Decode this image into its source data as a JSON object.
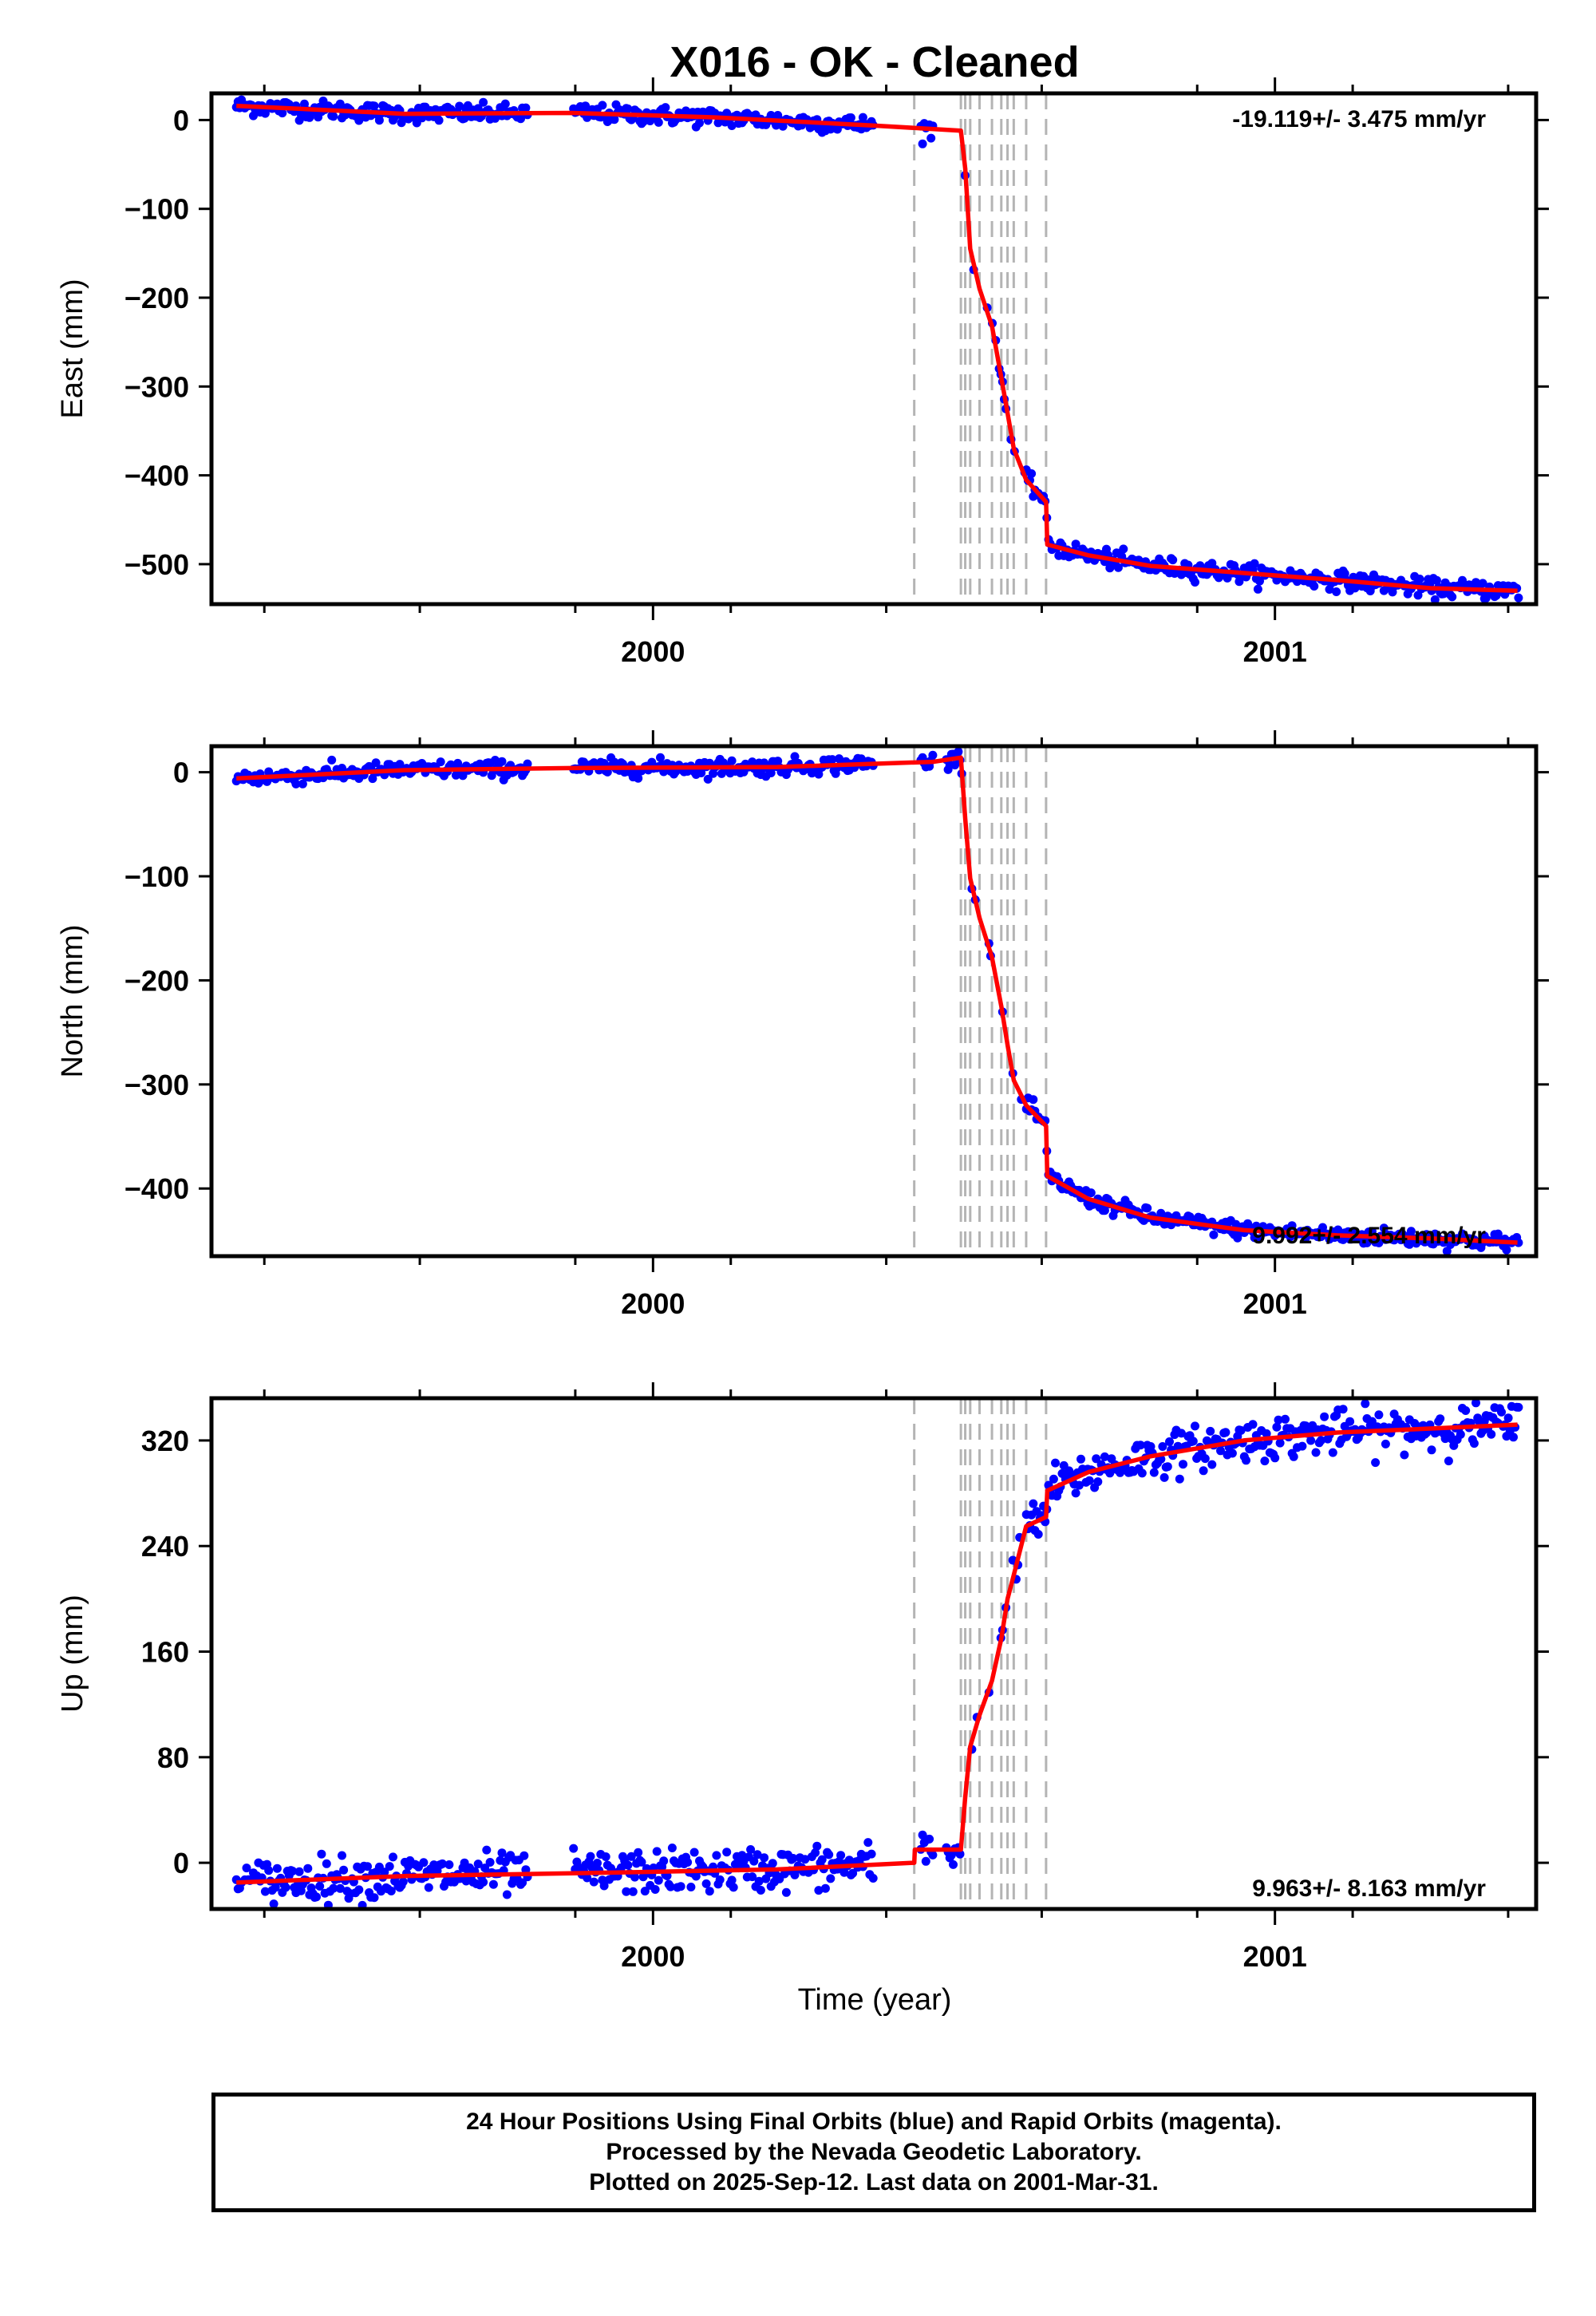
{
  "title": "X016  - OK - Cleaned",
  "xlabel": "Time (year)",
  "footer": {
    "line1": "24 Hour Positions Using Final Orbits (blue) and Rapid Orbits (magenta).",
    "line2": "Processed by the Nevada Geodetic Laboratory.",
    "line3": "Plotted on 2025-Sep-12. Last data on 2001-Mar-31."
  },
  "chart_data": {
    "type": "scatter",
    "xlim": [
      1999.29,
      2001.42
    ],
    "x_major_ticks": [
      2000,
      2001
    ],
    "x_minor_ticks": [
      1999.375,
      1999.625,
      1999.875,
      2000.125,
      2000.375,
      2000.625,
      2000.875,
      2001.125,
      2001.375
    ],
    "event_lines": [
      2000.42,
      2000.495,
      2000.502,
      2000.51,
      2000.525,
      2000.545,
      2000.56,
      2000.57,
      2000.58,
      2000.6,
      2000.632
    ],
    "colors": {
      "data": "#0000ff",
      "model": "#ff0000",
      "event": "#b4b4b4"
    },
    "panels": [
      {
        "ylabel": "East (mm)",
        "ylim": [
          -545,
          30
        ],
        "yticks": [
          0,
          -100,
          -200,
          -300,
          -400,
          -500
        ],
        "rate": "-19.119+/- 3.475 mm/yr",
        "rate_position": "top-right",
        "noise": 5,
        "model": [
          [
            1999.33,
            16
          ],
          [
            1999.6,
            7
          ],
          [
            1999.87,
            8
          ],
          [
            2000.1,
            3
          ],
          [
            2000.35,
            -6
          ],
          [
            2000.495,
            -12
          ],
          [
            2000.502,
            -55
          ],
          [
            2000.51,
            -145
          ],
          [
            2000.525,
            -190
          ],
          [
            2000.545,
            -232
          ],
          [
            2000.56,
            -290
          ],
          [
            2000.57,
            -330
          ],
          [
            2000.58,
            -370
          ],
          [
            2000.6,
            -405
          ],
          [
            2000.632,
            -430
          ],
          [
            2000.634,
            -478
          ],
          [
            2000.7,
            -490
          ],
          [
            2000.8,
            -502
          ],
          [
            2000.95,
            -510
          ],
          [
            2001.1,
            -518
          ],
          [
            2001.25,
            -527
          ],
          [
            2001.39,
            -530
          ]
        ],
        "gaps": [
          [
            1999.8,
            1999.87
          ],
          [
            2000.355,
            2000.43
          ],
          [
            2000.45,
            2000.495
          ]
        ]
      },
      {
        "ylabel": "North (mm)",
        "ylim": [
          -465,
          25
        ],
        "yticks": [
          0,
          -100,
          -200,
          -300,
          -400
        ],
        "rate": "9.992+/- 2.554 mm/yr",
        "rate_position": "bottom-right",
        "noise": 4,
        "model": [
          [
            1999.33,
            -6
          ],
          [
            1999.6,
            2
          ],
          [
            1999.87,
            4
          ],
          [
            2000.2,
            5
          ],
          [
            2000.45,
            10
          ],
          [
            2000.495,
            14
          ],
          [
            2000.502,
            -45
          ],
          [
            2000.51,
            -102
          ],
          [
            2000.525,
            -140
          ],
          [
            2000.545,
            -178
          ],
          [
            2000.56,
            -225
          ],
          [
            2000.57,
            -262
          ],
          [
            2000.58,
            -296
          ],
          [
            2000.6,
            -320
          ],
          [
            2000.632,
            -340
          ],
          [
            2000.634,
            -388
          ],
          [
            2000.7,
            -410
          ],
          [
            2000.8,
            -428
          ],
          [
            2000.95,
            -440
          ],
          [
            2001.1,
            -445
          ],
          [
            2001.25,
            -448
          ],
          [
            2001.39,
            -452
          ]
        ],
        "gaps": [
          [
            1999.8,
            1999.87
          ],
          [
            2000.355,
            2000.43
          ],
          [
            2000.45,
            2000.47
          ]
        ]
      },
      {
        "ylabel": "Up (mm)",
        "ylim": [
          -35,
          352
        ],
        "yticks": [
          320,
          240,
          160,
          80,
          0
        ],
        "rate": "9.963+/- 8.163 mm/yr",
        "rate_position": "bottom-right",
        "noise": 8,
        "model": [
          [
            1999.33,
            -15
          ],
          [
            1999.6,
            -10
          ],
          [
            1999.87,
            -8
          ],
          [
            2000.2,
            -5
          ],
          [
            2000.42,
            0
          ],
          [
            2000.421,
            10
          ],
          [
            2000.495,
            10
          ],
          [
            2000.502,
            50
          ],
          [
            2000.51,
            88
          ],
          [
            2000.525,
            112
          ],
          [
            2000.545,
            138
          ],
          [
            2000.56,
            170
          ],
          [
            2000.57,
            200
          ],
          [
            2000.58,
            218
          ],
          [
            2000.6,
            255
          ],
          [
            2000.632,
            262
          ],
          [
            2000.634,
            282
          ],
          [
            2000.7,
            296
          ],
          [
            2000.8,
            308
          ],
          [
            2000.95,
            320
          ],
          [
            2001.1,
            326
          ],
          [
            2001.25,
            329
          ],
          [
            2001.39,
            332
          ]
        ],
        "gaps": [
          [
            1999.8,
            1999.87
          ],
          [
            2000.355,
            2000.43
          ],
          [
            2000.45,
            2000.47
          ]
        ]
      }
    ]
  }
}
